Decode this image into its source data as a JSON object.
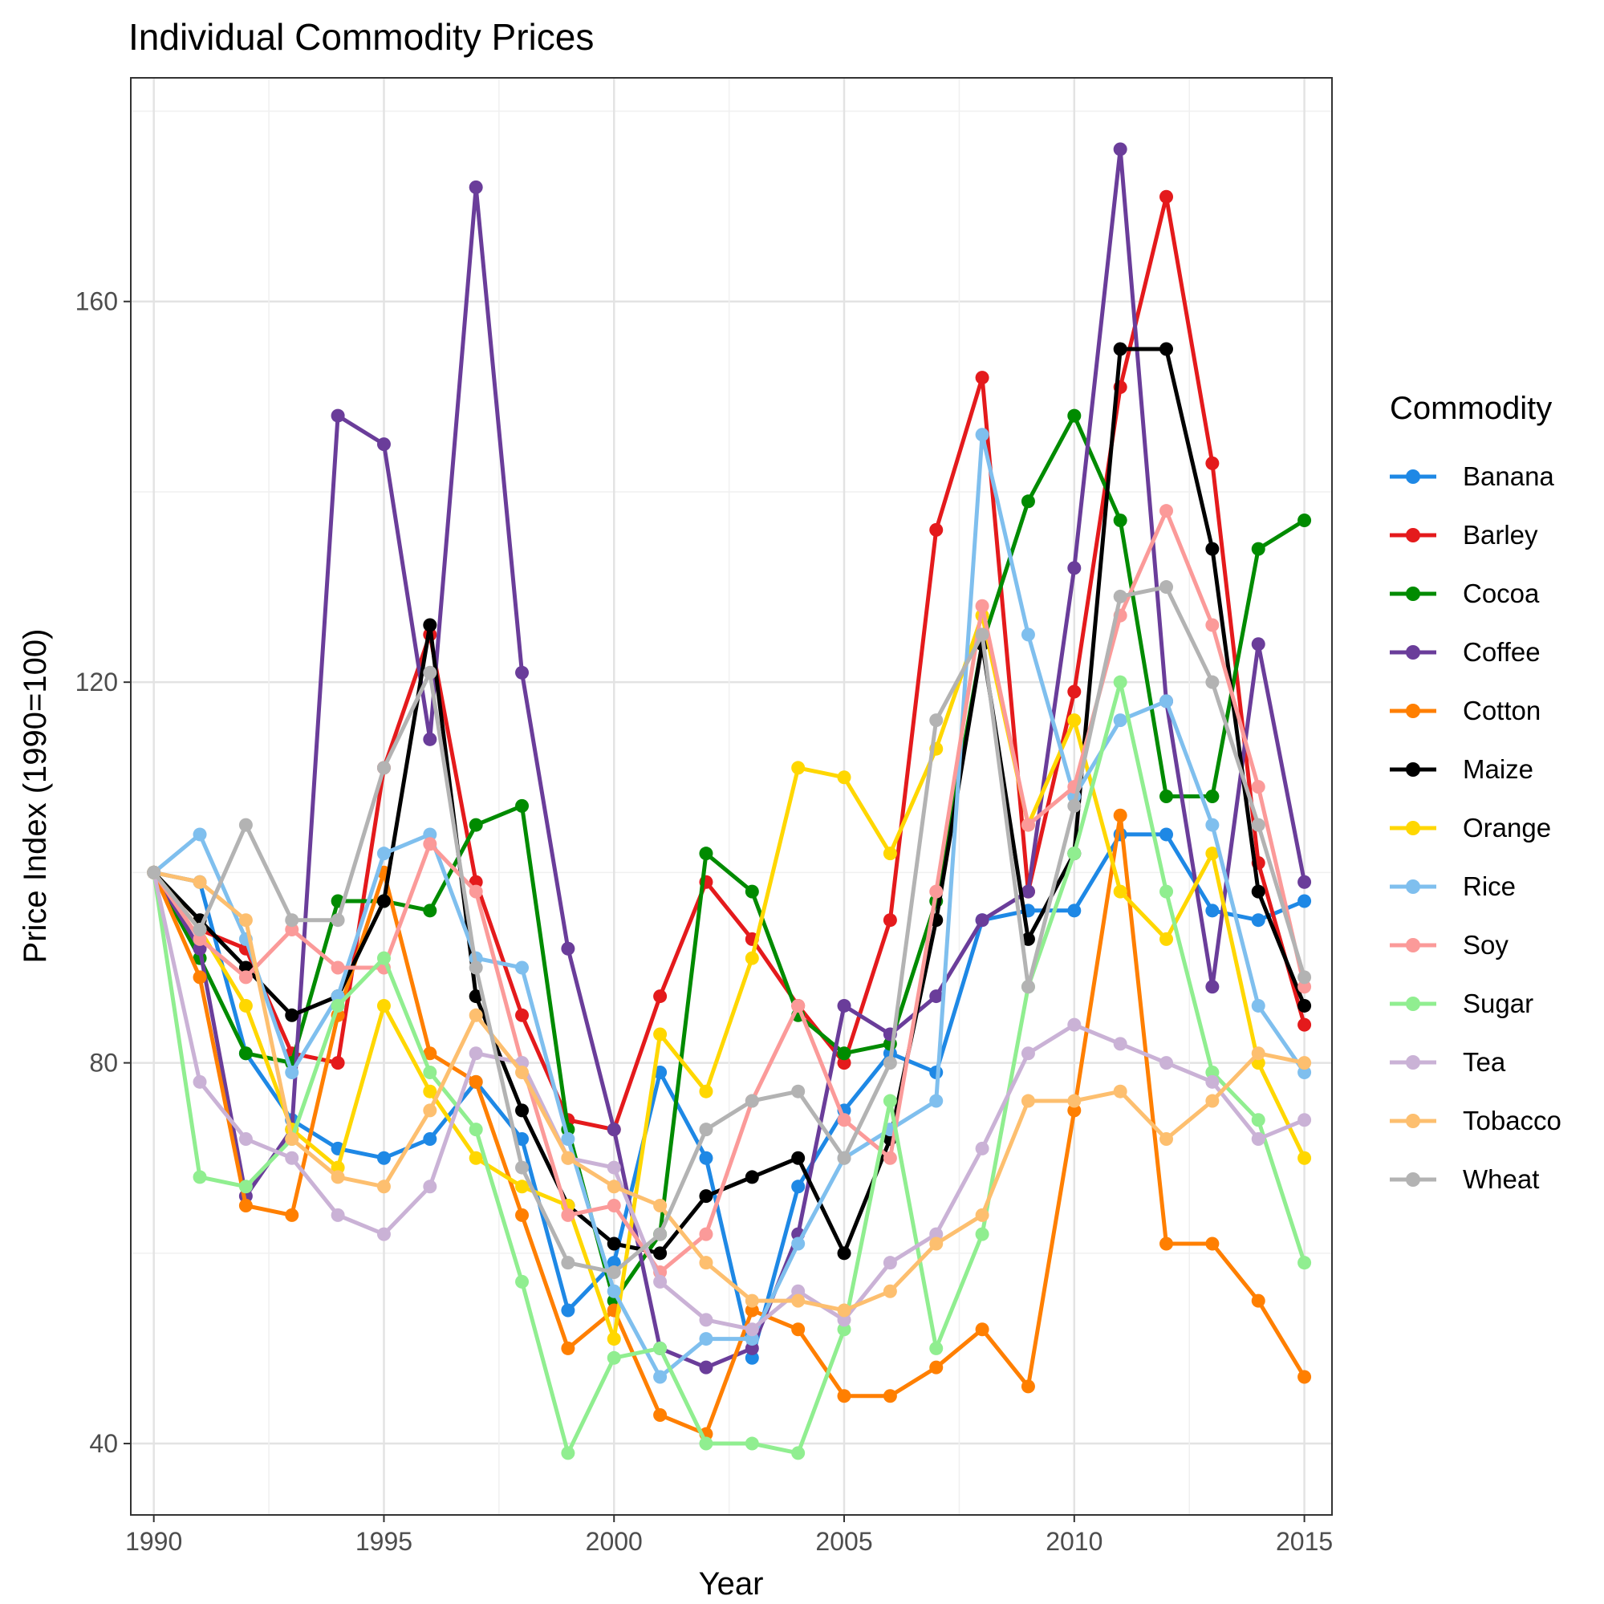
{
  "chart_data": {
    "type": "line",
    "title": "Individual Commodity Prices",
    "xlabel": "Year",
    "ylabel": "Price Index (1990=100)",
    "xlim": [
      1989.5,
      2015.6
    ],
    "ylim": [
      32.5,
      183.5
    ],
    "x_ticks": [
      1990,
      1995,
      2000,
      2005,
      2010,
      2015
    ],
    "x_tick_labels": [
      "1990",
      "1995",
      "2000",
      "2005",
      "2010",
      "2015"
    ],
    "y_ticks": [
      40,
      80,
      120,
      160
    ],
    "y_tick_labels": [
      "40",
      "80",
      "120",
      "160"
    ],
    "y_minor_ticks": [
      60,
      100,
      140,
      180
    ],
    "grid": true,
    "legend_title": "Commodity",
    "legend_position": "right",
    "x": [
      1990,
      1991,
      1992,
      1993,
      1994,
      1995,
      1996,
      1997,
      1998,
      1999,
      2000,
      2001,
      2002,
      2003,
      2004,
      2005,
      2006,
      2007,
      2008,
      2009,
      2010,
      2011,
      2012,
      2013,
      2014,
      2015
    ],
    "series": [
      {
        "name": "Banana",
        "color": "#1e88e5",
        "values": [
          100,
          99,
          81,
          74,
          71,
          70,
          72,
          78,
          72,
          54,
          59,
          79,
          70,
          49,
          67,
          75,
          81,
          79,
          95,
          96,
          96,
          104,
          104,
          96,
          95,
          97
        ]
      },
      {
        "name": "Barley",
        "color": "#e41a1c",
        "values": [
          100,
          94,
          92,
          81,
          80,
          111,
          125,
          99,
          85,
          74,
          73,
          87,
          99,
          93,
          86,
          80,
          95,
          136,
          152,
          98,
          119,
          151,
          171,
          143,
          101,
          84
        ]
      },
      {
        "name": "Cocoa",
        "color": "#008b00",
        "values": [
          100,
          91,
          81,
          80,
          97,
          97,
          96,
          105,
          107,
          73,
          55,
          62,
          102,
          98,
          85,
          81,
          82,
          97,
          124,
          139,
          148,
          137,
          108,
          108,
          134,
          137
        ]
      },
      {
        "name": "Coffee",
        "color": "#6a3d9a",
        "values": [
          100,
          92,
          66,
          73,
          148,
          145,
          114,
          172,
          121,
          92,
          73,
          50,
          48,
          50,
          62,
          86,
          83,
          87,
          95,
          98,
          132,
          176,
          118,
          88,
          124,
          99
        ]
      },
      {
        "name": "Cotton",
        "color": "#ff7f00",
        "values": [
          100,
          89,
          65,
          64,
          85,
          100,
          81,
          78,
          64,
          50,
          54,
          43,
          41,
          54,
          52,
          45,
          45,
          48,
          52,
          46,
          75,
          106,
          61,
          61,
          55,
          47
        ]
      },
      {
        "name": "Maize",
        "color": "#000000",
        "values": [
          100,
          95,
          90,
          85,
          87,
          97,
          126,
          87,
          75,
          65,
          61,
          60,
          66,
          68,
          70,
          60,
          72,
          95,
          124,
          93,
          102,
          155,
          155,
          134,
          98,
          86
        ]
      },
      {
        "name": "Orange",
        "color": "#ffd700",
        "values": [
          100,
          94,
          86,
          73,
          69,
          86,
          77,
          70,
          67,
          65,
          51,
          83,
          77,
          91,
          111,
          110,
          102,
          113,
          127,
          105,
          116,
          98,
          93,
          102,
          80,
          70
        ]
      },
      {
        "name": "Rice",
        "color": "#7fbfee",
        "values": [
          100,
          104,
          93,
          79,
          87,
          102,
          104,
          91,
          90,
          72,
          56,
          47,
          51,
          51,
          61,
          70,
          73,
          76,
          146,
          125,
          108,
          116,
          118,
          105,
          86,
          79
        ]
      },
      {
        "name": "Soy",
        "color": "#fb9a99",
        "values": [
          100,
          93,
          89,
          94,
          90,
          90,
          103,
          98,
          80,
          64,
          65,
          58,
          62,
          76,
          86,
          74,
          70,
          98,
          128,
          105,
          109,
          127,
          138,
          126,
          109,
          88
        ]
      },
      {
        "name": "Sugar",
        "color": "#90ee90",
        "values": [
          100,
          68,
          67,
          72,
          86,
          91,
          79,
          73,
          57,
          39,
          49,
          50,
          40,
          40,
          39,
          52,
          76,
          50,
          62,
          88,
          102,
          120,
          98,
          79,
          74,
          59
        ]
      },
      {
        "name": "Tea",
        "color": "#cab2d6",
        "values": [
          100,
          78,
          72,
          70,
          64,
          62,
          67,
          81,
          80,
          70,
          69,
          57,
          53,
          52,
          56,
          53,
          59,
          62,
          71,
          81,
          84,
          82,
          80,
          78,
          72,
          74
        ]
      },
      {
        "name": "Tobacco",
        "color": "#fdbf6f",
        "values": [
          100,
          99,
          95,
          72,
          68,
          67,
          75,
          85,
          79,
          70,
          67,
          65,
          59,
          55,
          55,
          54,
          56,
          61,
          64,
          76,
          76,
          77,
          72,
          76,
          81,
          80
        ]
      },
      {
        "name": "Wheat",
        "color": "#b3b3b3",
        "values": [
          100,
          94,
          105,
          95,
          95,
          111,
          121,
          90,
          69,
          59,
          58,
          62,
          73,
          76,
          77,
          70,
          80,
          116,
          125,
          88,
          107,
          129,
          130,
          120,
          105,
          89
        ]
      }
    ]
  }
}
